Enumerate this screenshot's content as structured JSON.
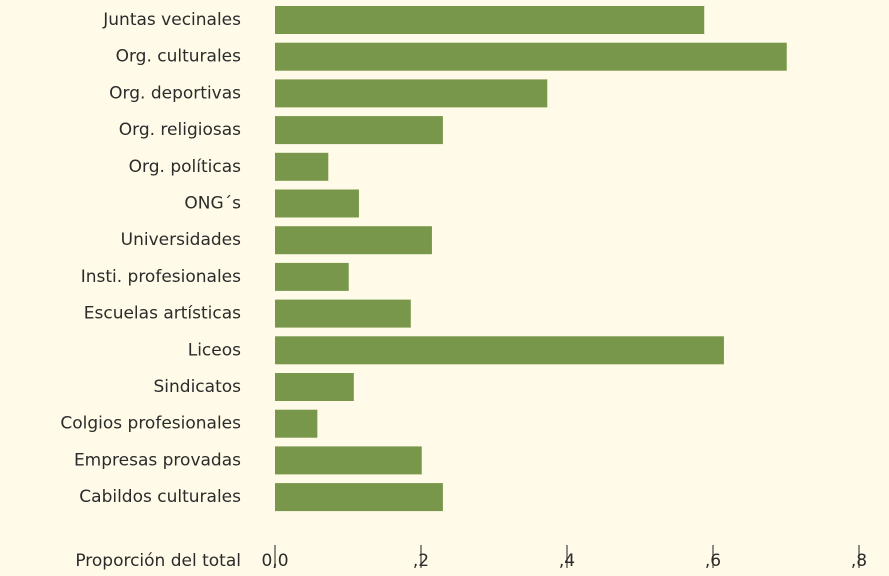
{
  "chart_data": {
    "type": "barh",
    "categories": [
      "Juntas vecinales",
      "Org. culturales",
      "Org. deportivas",
      "Org. religiosas",
      "Org. políticas",
      "ONG´s",
      "Universidades",
      "Insti. profesionales",
      "Escuelas artísticas",
      "Liceos",
      "Sindicatos",
      "Colgios profesionales",
      "Empresas provadas",
      "Cabildos culturales"
    ],
    "values": [
      0.588,
      0.701,
      0.373,
      0.23,
      0.073,
      0.115,
      0.215,
      0.101,
      0.186,
      0.615,
      0.108,
      0.058,
      0.201,
      0.23
    ],
    "color": "#78974a",
    "xlabel": "Proporción del total",
    "xlim": [
      0,
      0.8
    ],
    "xticks": [
      {
        "value": 0,
        "label": "0,0"
      },
      {
        "value": 0.2,
        "label": ",2"
      },
      {
        "value": 0.4,
        "label": ",4"
      },
      {
        "value": 0.6,
        "label": ",6"
      },
      {
        "value": 0.8,
        "label": ",8"
      }
    ]
  }
}
